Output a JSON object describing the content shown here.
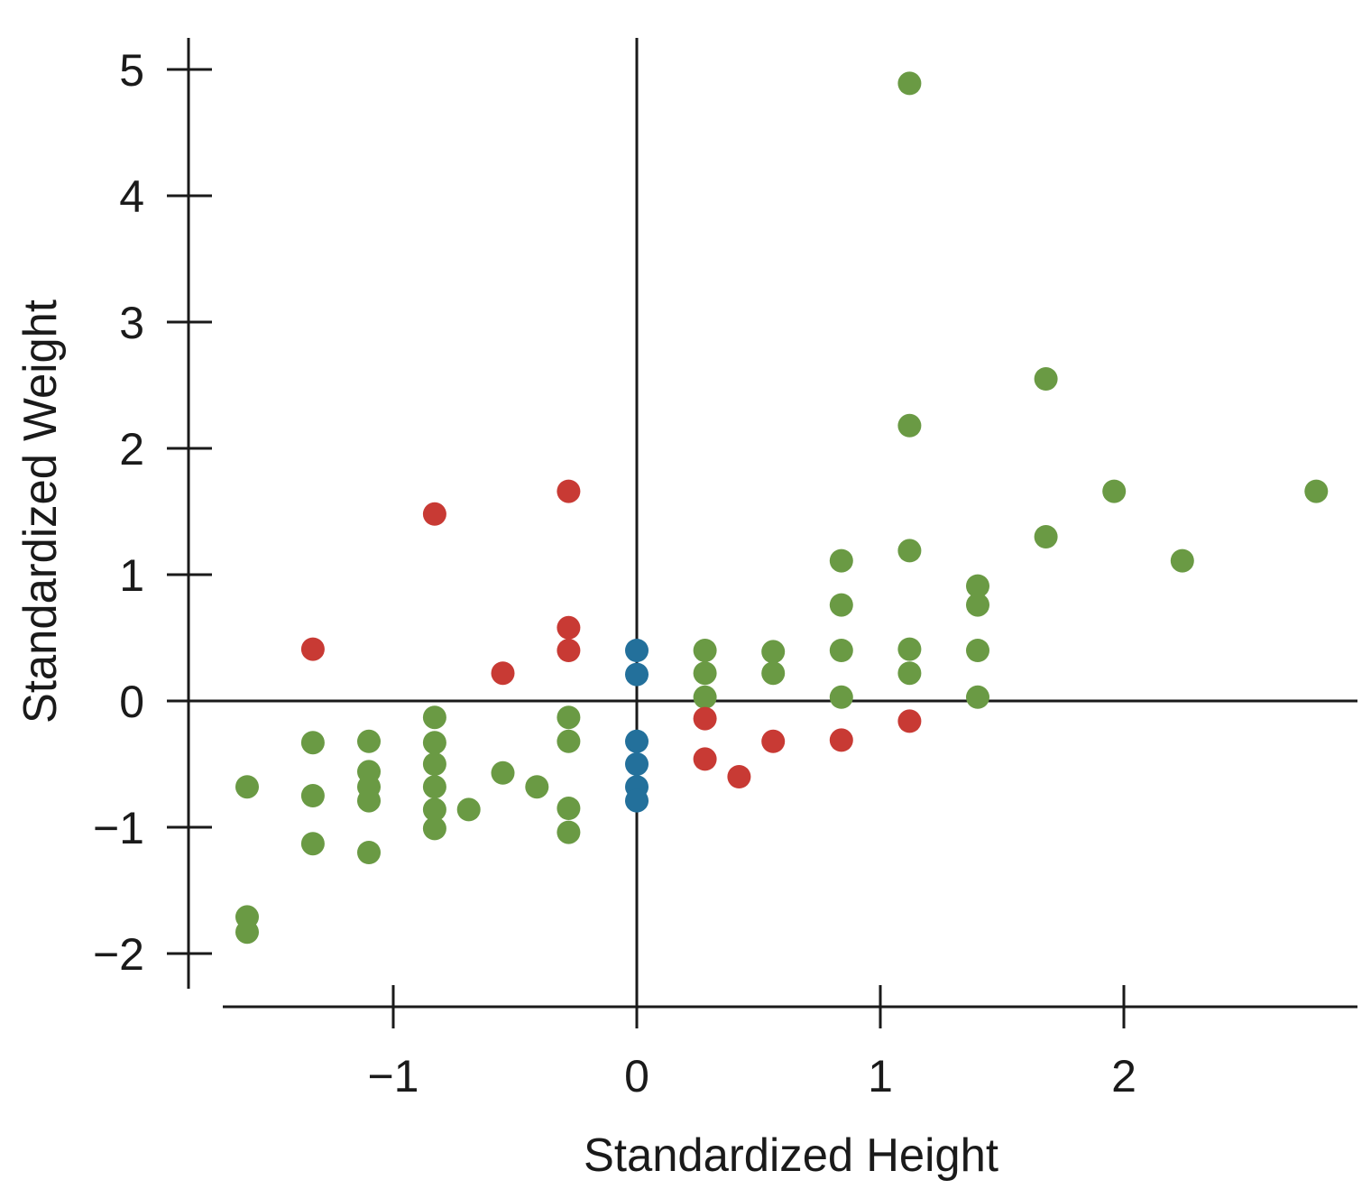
{
  "chart_data": {
    "type": "scatter",
    "title": "",
    "xlabel": "Standardized Height",
    "ylabel": "Standardized Weight",
    "xlim": [
      -1.7,
      2.95
    ],
    "ylim": [
      -2.25,
      5.25
    ],
    "x_ticks": [
      -1,
      0,
      1,
      2
    ],
    "y_ticks": [
      -2,
      -1,
      0,
      1,
      2,
      3,
      4,
      5
    ],
    "x_tick_labels": [
      "−1",
      "0",
      "1",
      "2"
    ],
    "y_tick_labels": [
      "−2",
      "−1",
      "0",
      "1",
      "2",
      "3",
      "4",
      "5"
    ],
    "grid": false,
    "reference_lines": {
      "x": 0,
      "y": 0
    },
    "colors": {
      "green": "#6a9a44",
      "red": "#c83a34",
      "blue": "#23709b"
    },
    "series": [
      {
        "color_key": "green",
        "points": [
          [
            -1.6,
            -0.68
          ],
          [
            -1.6,
            -1.71
          ],
          [
            -1.6,
            -1.83
          ],
          [
            -1.33,
            -0.33
          ],
          [
            -1.33,
            -0.75
          ],
          [
            -1.33,
            -1.13
          ],
          [
            -1.1,
            -0.32
          ],
          [
            -1.1,
            -0.56
          ],
          [
            -1.1,
            -0.68
          ],
          [
            -1.1,
            -0.79
          ],
          [
            -1.1,
            -1.2
          ],
          [
            -0.83,
            -0.13
          ],
          [
            -0.83,
            -0.33
          ],
          [
            -0.83,
            -0.5
          ],
          [
            -0.83,
            -0.68
          ],
          [
            -0.83,
            -0.86
          ],
          [
            -0.83,
            -1.01
          ],
          [
            -0.69,
            -0.86
          ],
          [
            -0.55,
            -0.57
          ],
          [
            -0.41,
            -0.68
          ],
          [
            -0.28,
            -0.13
          ],
          [
            -0.28,
            -0.32
          ],
          [
            -0.28,
            -0.85
          ],
          [
            -0.28,
            -1.04
          ],
          [
            0.28,
            0.4
          ],
          [
            0.28,
            0.22
          ],
          [
            0.28,
            0.03
          ],
          [
            0.56,
            0.39
          ],
          [
            0.56,
            0.22
          ],
          [
            0.84,
            1.11
          ],
          [
            0.84,
            0.76
          ],
          [
            0.84,
            0.4
          ],
          [
            0.84,
            0.03
          ],
          [
            1.12,
            4.89
          ],
          [
            1.12,
            2.18
          ],
          [
            1.12,
            1.19
          ],
          [
            1.12,
            0.41
          ],
          [
            1.12,
            0.22
          ],
          [
            1.4,
            0.91
          ],
          [
            1.4,
            0.76
          ],
          [
            1.4,
            0.4
          ],
          [
            1.4,
            0.03
          ],
          [
            1.68,
            2.55
          ],
          [
            1.68,
            1.3
          ],
          [
            1.96,
            1.66
          ],
          [
            2.24,
            1.11
          ],
          [
            2.79,
            1.66
          ]
        ]
      },
      {
        "color_key": "red",
        "points": [
          [
            -1.33,
            0.41
          ],
          [
            -0.83,
            1.48
          ],
          [
            -0.55,
            0.22
          ],
          [
            -0.28,
            1.66
          ],
          [
            -0.28,
            0.58
          ],
          [
            -0.28,
            0.4
          ],
          [
            0.28,
            -0.14
          ],
          [
            0.28,
            -0.46
          ],
          [
            0.42,
            -0.6
          ],
          [
            0.56,
            -0.32
          ],
          [
            0.84,
            -0.31
          ],
          [
            1.12,
            -0.16
          ]
        ]
      },
      {
        "color_key": "blue",
        "points": [
          [
            0,
            0.4
          ],
          [
            0,
            0.21
          ],
          [
            0,
            -0.32
          ],
          [
            0,
            -0.5
          ],
          [
            0,
            -0.68
          ],
          [
            0,
            -0.79
          ]
        ]
      }
    ]
  }
}
